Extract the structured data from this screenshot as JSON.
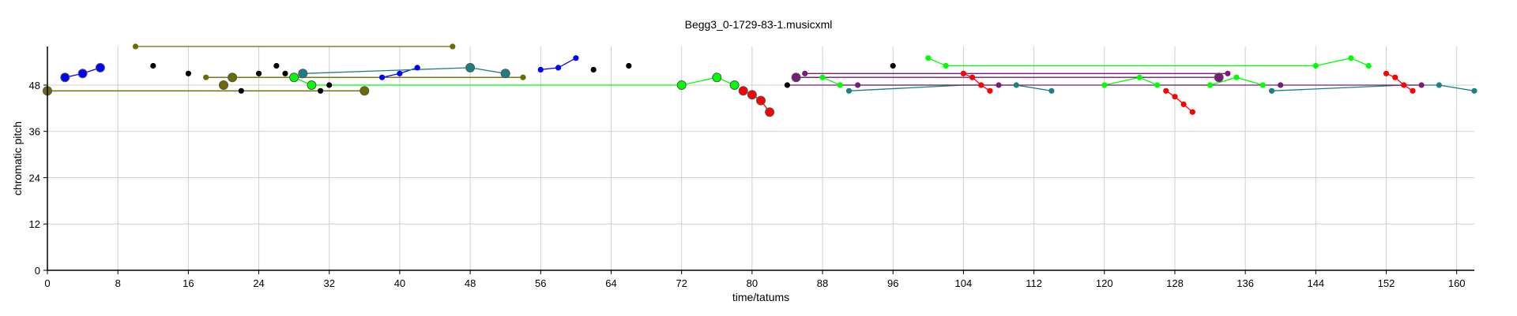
{
  "chart_data": {
    "type": "scatter",
    "title": "Begg3_0-1729-83-1.musicxml",
    "xlabel": "time/tatums",
    "ylabel": "chromatic pitch",
    "xlim": [
      0,
      162
    ],
    "ylim": [
      0,
      58
    ],
    "x_ticks": [
      "0",
      "8",
      "16",
      "24",
      "32",
      "40",
      "48",
      "56",
      "64",
      "72",
      "80",
      "88",
      "96",
      "104",
      "112",
      "120",
      "128",
      "136",
      "144",
      "152",
      "160"
    ],
    "y_ticks": [
      "0",
      "12",
      "24",
      "36",
      "48"
    ],
    "grid": true,
    "series": [
      {
        "color": "#0000ff",
        "paths": [
          [
            [
              2,
              50
            ],
            [
              4,
              51
            ],
            [
              6,
              52.5
            ]
          ],
          [
            [
              38,
              50
            ],
            [
              40,
              51
            ],
            [
              42,
              52.5
            ]
          ],
          [
            [
              56,
              52
            ],
            [
              58,
              52.5
            ],
            [
              60,
              55
            ]
          ]
        ],
        "points": [
          [
            2,
            50,
            "l"
          ],
          [
            4,
            51,
            "l"
          ],
          [
            6,
            52.5,
            "l"
          ],
          [
            38,
            50,
            "s"
          ],
          [
            40,
            51,
            "s"
          ],
          [
            42,
            52.5,
            "s"
          ],
          [
            56,
            52,
            "s"
          ],
          [
            58,
            52.5,
            "s"
          ],
          [
            60,
            55,
            "s"
          ]
        ]
      },
      {
        "color": "#000000",
        "paths": [],
        "points": [
          [
            12,
            53,
            "s"
          ],
          [
            16,
            51,
            "s"
          ],
          [
            20,
            48,
            "s"
          ],
          [
            22,
            46.5,
            "s"
          ],
          [
            24,
            51,
            "s"
          ],
          [
            26,
            53,
            "s"
          ],
          [
            27,
            51,
            "s"
          ],
          [
            31,
            46.5,
            "s"
          ],
          [
            32,
            48,
            "s"
          ],
          [
            62,
            52,
            "s"
          ],
          [
            66,
            53,
            "s"
          ],
          [
            84,
            48,
            "s"
          ],
          [
            96,
            53,
            "s"
          ]
        ]
      },
      {
        "color": "#6b6b00",
        "paths": [
          [
            [
              10,
              58
            ],
            [
              46,
              58
            ]
          ],
          [
            [
              0,
              46.5
            ],
            [
              36,
              46.5
            ]
          ],
          [
            [
              18,
              50
            ],
            [
              54,
              50
            ]
          ]
        ],
        "points": [
          [
            10,
            58,
            "s"
          ],
          [
            46,
            58,
            "s"
          ],
          [
            0,
            46.5,
            "l"
          ],
          [
            36,
            46.5,
            "l"
          ],
          [
            18,
            50,
            "s"
          ],
          [
            54,
            50,
            "s"
          ],
          [
            21,
            50,
            "l"
          ],
          [
            20,
            48,
            "l"
          ]
        ]
      },
      {
        "color": "#00ff00",
        "paths": [
          [
            [
              28,
              50
            ],
            [
              30,
              48
            ],
            [
              72,
              48
            ],
            [
              76,
              50
            ],
            [
              78,
              48
            ]
          ],
          [
            [
              85,
              50
            ],
            [
              88,
              50
            ],
            [
              90,
              48
            ],
            [
              106,
              48
            ]
          ],
          [
            [
              120,
              48
            ],
            [
              124,
              50
            ],
            [
              126,
              48
            ],
            [
              132,
              48
            ],
            [
              135,
              50
            ],
            [
              138,
              48
            ]
          ],
          [
            [
              100,
              55
            ],
            [
              102,
              53
            ],
            [
              144,
              53
            ],
            [
              148,
              55
            ],
            [
              150,
              53
            ]
          ]
        ],
        "points": [
          [
            28,
            50,
            "l"
          ],
          [
            30,
            48,
            "l"
          ],
          [
            72,
            48,
            "l"
          ],
          [
            76,
            50,
            "l"
          ],
          [
            78,
            48,
            "l"
          ],
          [
            88,
            50,
            "s"
          ],
          [
            90,
            48,
            "s"
          ],
          [
            100,
            55,
            "s"
          ],
          [
            102,
            53,
            "s"
          ],
          [
            120,
            48,
            "s"
          ],
          [
            124,
            50,
            "s"
          ],
          [
            126,
            48,
            "s"
          ],
          [
            132,
            48,
            "s"
          ],
          [
            135,
            50,
            "s"
          ],
          [
            138,
            48,
            "s"
          ],
          [
            144,
            53,
            "s"
          ],
          [
            148,
            55,
            "s"
          ],
          [
            150,
            53,
            "s"
          ]
        ]
      },
      {
        "color": "#ff0000",
        "paths": [
          [
            [
              79,
              46.5
            ],
            [
              80,
              45.5
            ],
            [
              81,
              44
            ],
            [
              82,
              41
            ]
          ],
          [
            [
              104,
              51
            ],
            [
              105,
              50
            ],
            [
              106,
              48
            ],
            [
              107,
              46.5
            ]
          ],
          [
            [
              127,
              46.5
            ],
            [
              128,
              45
            ],
            [
              129,
              43
            ],
            [
              130,
              41
            ]
          ],
          [
            [
              152,
              51
            ],
            [
              153,
              50
            ],
            [
              154,
              48
            ],
            [
              155,
              46.5
            ]
          ]
        ],
        "points": [
          [
            79,
            46.5,
            "l"
          ],
          [
            80,
            45.5,
            "l"
          ],
          [
            81,
            44,
            "l"
          ],
          [
            82,
            41,
            "l"
          ],
          [
            104,
            51,
            "s"
          ],
          [
            105,
            50,
            "s"
          ],
          [
            106,
            48,
            "s"
          ],
          [
            107,
            46.5,
            "s"
          ],
          [
            127,
            46.5,
            "s"
          ],
          [
            128,
            45,
            "s"
          ],
          [
            129,
            43,
            "s"
          ],
          [
            130,
            41,
            "s"
          ],
          [
            152,
            51,
            "s"
          ],
          [
            153,
            50,
            "s"
          ],
          [
            154,
            48,
            "s"
          ],
          [
            155,
            46.5,
            "s"
          ]
        ]
      },
      {
        "color": "#1a8080",
        "paths": [
          [
            [
              29,
              51
            ],
            [
              48,
              52.5
            ],
            [
              52,
              51
            ]
          ],
          [
            [
              91,
              46.5
            ],
            [
              104,
              48
            ],
            [
              110,
              48
            ],
            [
              114,
              46.5
            ]
          ],
          [
            [
              139,
              46.5
            ],
            [
              154,
              48
            ],
            [
              158,
              48
            ],
            [
              162,
              46.5
            ]
          ]
        ],
        "points": [
          [
            29,
            51,
            "l"
          ],
          [
            48,
            52.5,
            "l"
          ],
          [
            52,
            51,
            "l"
          ],
          [
            91,
            46.5,
            "s"
          ],
          [
            110,
            48,
            "s"
          ],
          [
            114,
            46.5,
            "s"
          ],
          [
            139,
            46.5,
            "s"
          ],
          [
            158,
            48,
            "s"
          ],
          [
            162,
            46.5,
            "s"
          ]
        ]
      },
      {
        "color": "#7a1a7a",
        "paths": [
          [
            [
              85,
              50
            ],
            [
              133,
              50
            ]
          ],
          [
            [
              86,
              51
            ],
            [
              134,
              51
            ]
          ],
          [
            [
              84,
              48
            ],
            [
              156,
              48
            ]
          ]
        ],
        "points": [
          [
            85,
            50,
            "l"
          ],
          [
            86,
            51,
            "s"
          ],
          [
            92,
            48,
            "s"
          ],
          [
            108,
            48,
            "s"
          ],
          [
            133,
            50,
            "l"
          ],
          [
            134,
            51,
            "s"
          ],
          [
            140,
            48,
            "s"
          ],
          [
            156,
            48,
            "s"
          ]
        ]
      }
    ]
  }
}
